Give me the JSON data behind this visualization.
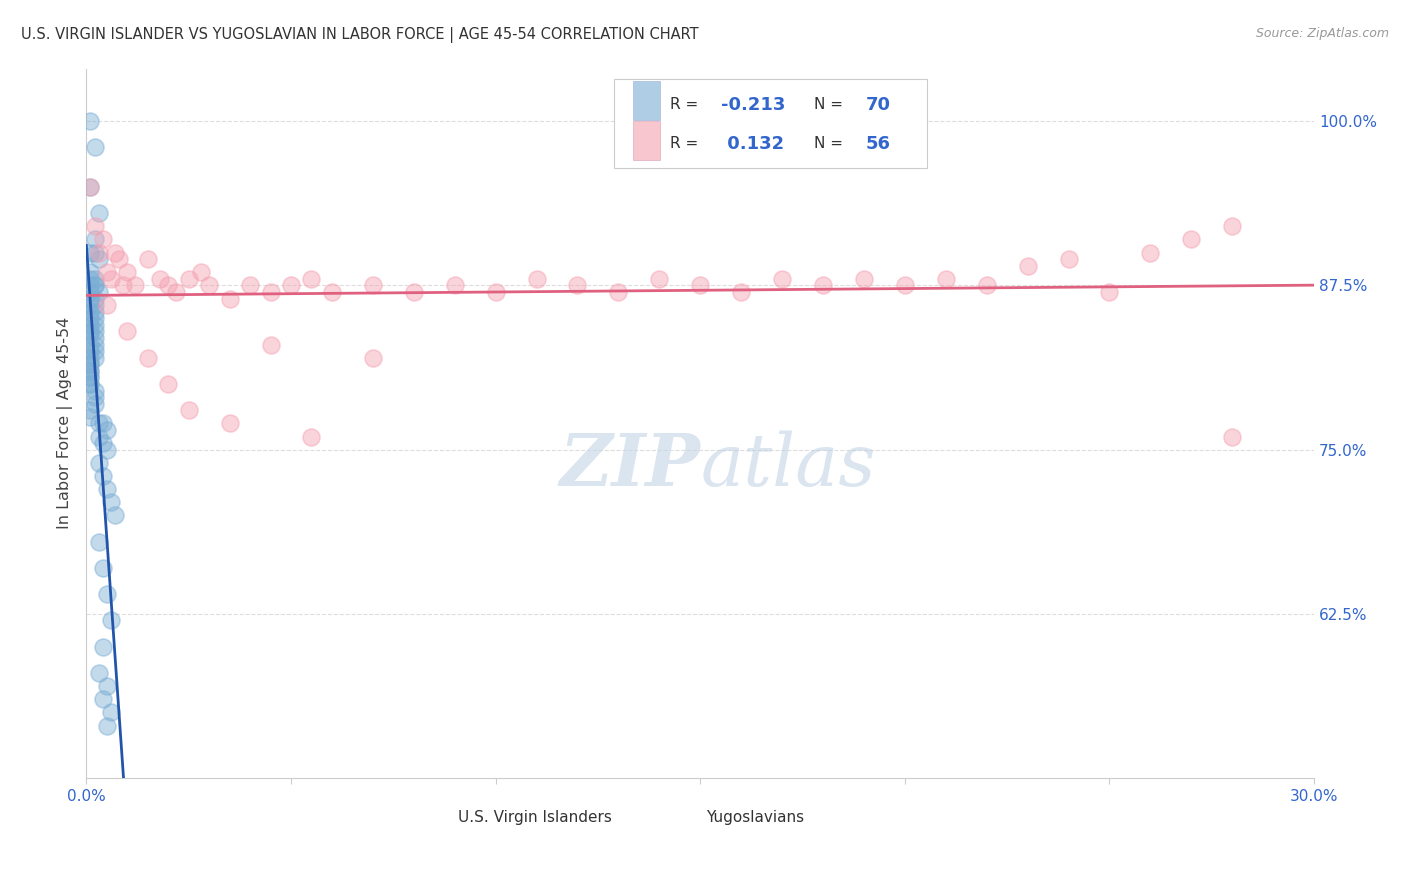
{
  "title": "U.S. VIRGIN ISLANDER VS YUGOSLAVIAN IN LABOR FORCE | AGE 45-54 CORRELATION CHART",
  "source": "Source: ZipAtlas.com",
  "ylabel": "In Labor Force | Age 45-54",
  "xlim": [
    0.0,
    0.3
  ],
  "ylim": [
    0.5,
    1.04
  ],
  "yticks_right": [
    0.625,
    0.75,
    0.875,
    1.0
  ],
  "ytick_right_labels": [
    "62.5%",
    "75.0%",
    "87.5%",
    "100.0%"
  ],
  "blue_R": -0.213,
  "blue_N": 70,
  "pink_R": 0.132,
  "pink_N": 56,
  "blue_color": "#7BADD4",
  "pink_color": "#F4A0B0",
  "blue_label": "U.S. Virgin Islanders",
  "pink_label": "Yugoslavians",
  "blue_line_color": "#2255AA",
  "pink_line_color": "#E06080",
  "watermark_zip": "ZIP",
  "watermark_atlas": "atlas",
  "blue_scatter_x": [
    0.001,
    0.002,
    0.001,
    0.003,
    0.002,
    0.001,
    0.002,
    0.003,
    0.001,
    0.002,
    0.001,
    0.002,
    0.001,
    0.002,
    0.001,
    0.003,
    0.001,
    0.002,
    0.001,
    0.002,
    0.001,
    0.002,
    0.001,
    0.002,
    0.001,
    0.002,
    0.001,
    0.002,
    0.001,
    0.002,
    0.001,
    0.002,
    0.001,
    0.002,
    0.001,
    0.002,
    0.001,
    0.001,
    0.001,
    0.001,
    0.001,
    0.001,
    0.001,
    0.001,
    0.002,
    0.002,
    0.002,
    0.001,
    0.001,
    0.003,
    0.004,
    0.005,
    0.003,
    0.004,
    0.005,
    0.003,
    0.004,
    0.005,
    0.006,
    0.007,
    0.003,
    0.004,
    0.005,
    0.006,
    0.004,
    0.003,
    0.005,
    0.004,
    0.006,
    0.005
  ],
  "blue_scatter_y": [
    1.0,
    0.98,
    0.95,
    0.93,
    0.91,
    0.9,
    0.9,
    0.895,
    0.885,
    0.88,
    0.88,
    0.875,
    0.875,
    0.875,
    0.87,
    0.87,
    0.865,
    0.865,
    0.86,
    0.86,
    0.855,
    0.855,
    0.85,
    0.85,
    0.845,
    0.845,
    0.84,
    0.84,
    0.838,
    0.835,
    0.83,
    0.83,
    0.825,
    0.825,
    0.82,
    0.82,
    0.815,
    0.815,
    0.81,
    0.81,
    0.805,
    0.805,
    0.8,
    0.8,
    0.795,
    0.79,
    0.785,
    0.78,
    0.775,
    0.77,
    0.77,
    0.765,
    0.76,
    0.755,
    0.75,
    0.74,
    0.73,
    0.72,
    0.71,
    0.7,
    0.68,
    0.66,
    0.64,
    0.62,
    0.6,
    0.58,
    0.57,
    0.56,
    0.55,
    0.54
  ],
  "pink_scatter_x": [
    0.001,
    0.002,
    0.003,
    0.004,
    0.005,
    0.006,
    0.007,
    0.008,
    0.009,
    0.01,
    0.012,
    0.015,
    0.018,
    0.02,
    0.022,
    0.025,
    0.028,
    0.03,
    0.035,
    0.04,
    0.045,
    0.05,
    0.055,
    0.06,
    0.07,
    0.08,
    0.09,
    0.1,
    0.11,
    0.12,
    0.13,
    0.14,
    0.15,
    0.16,
    0.17,
    0.18,
    0.19,
    0.2,
    0.21,
    0.22,
    0.23,
    0.24,
    0.25,
    0.26,
    0.27,
    0.28,
    0.005,
    0.01,
    0.015,
    0.02,
    0.025,
    0.035,
    0.045,
    0.055,
    0.07,
    0.28
  ],
  "pink_scatter_y": [
    0.95,
    0.92,
    0.9,
    0.91,
    0.885,
    0.88,
    0.9,
    0.895,
    0.875,
    0.885,
    0.875,
    0.895,
    0.88,
    0.875,
    0.87,
    0.88,
    0.885,
    0.875,
    0.865,
    0.875,
    0.87,
    0.875,
    0.88,
    0.87,
    0.875,
    0.87,
    0.875,
    0.87,
    0.88,
    0.875,
    0.87,
    0.88,
    0.875,
    0.87,
    0.88,
    0.875,
    0.88,
    0.875,
    0.88,
    0.875,
    0.89,
    0.895,
    0.87,
    0.9,
    0.91,
    0.92,
    0.86,
    0.84,
    0.82,
    0.8,
    0.78,
    0.77,
    0.83,
    0.76,
    0.82,
    0.76
  ]
}
